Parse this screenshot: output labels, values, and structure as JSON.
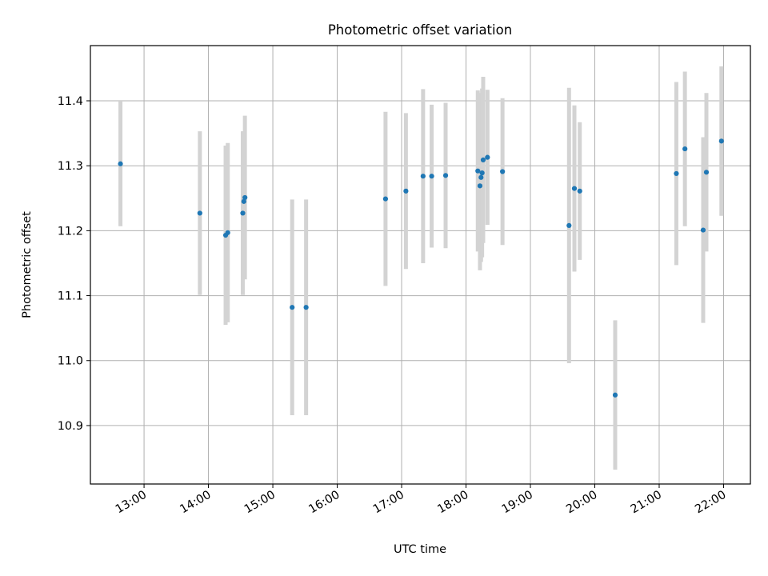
{
  "chart_data": {
    "type": "scatter",
    "title": "Photometric offset variation",
    "xlabel": "UTC time",
    "ylabel": "Photometric offset",
    "x_ticks": [
      "13:00",
      "14:00",
      "15:00",
      "16:00",
      "17:00",
      "18:00",
      "19:00",
      "20:00",
      "21:00",
      "22:00"
    ],
    "y_ticks": [
      "10.9",
      "11.0",
      "11.1",
      "11.2",
      "11.3",
      "11.4"
    ],
    "xlim": [
      "12:10",
      "22:25"
    ],
    "ylim": [
      10.81,
      11.485
    ],
    "grid": true,
    "point_color": "#1f77b4",
    "errorbar_color": "#d3d3d3",
    "points": [
      {
        "x": "12:38",
        "y": 11.303,
        "err": 0.096
      },
      {
        "x": "13:52",
        "y": 11.227,
        "err": 0.126
      },
      {
        "x": "14:16",
        "y": 11.193,
        "err": 0.138
      },
      {
        "x": "14:18",
        "y": 11.197,
        "err": 0.138
      },
      {
        "x": "14:32",
        "y": 11.227,
        "err": 0.126
      },
      {
        "x": "14:33",
        "y": 11.245,
        "err": 0.108
      },
      {
        "x": "14:34",
        "y": 11.251,
        "err": 0.126
      },
      {
        "x": "15:18",
        "y": 11.082,
        "err": 0.166
      },
      {
        "x": "15:31",
        "y": 11.082,
        "err": 0.166
      },
      {
        "x": "16:45",
        "y": 11.249,
        "err": 0.134
      },
      {
        "x": "17:04",
        "y": 11.261,
        "err": 0.12
      },
      {
        "x": "17:20",
        "y": 11.284,
        "err": 0.134
      },
      {
        "x": "17:28",
        "y": 11.284,
        "err": 0.11
      },
      {
        "x": "17:41",
        "y": 11.285,
        "err": 0.112
      },
      {
        "x": "18:11",
        "y": 11.292,
        "err": 0.124
      },
      {
        "x": "18:13",
        "y": 11.269,
        "err": 0.13
      },
      {
        "x": "18:14",
        "y": 11.282,
        "err": 0.13
      },
      {
        "x": "18:15",
        "y": 11.289,
        "err": 0.13
      },
      {
        "x": "18:16",
        "y": 11.309,
        "err": 0.128
      },
      {
        "x": "18:20",
        "y": 11.313,
        "err": 0.104
      },
      {
        "x": "18:34",
        "y": 11.291,
        "err": 0.113
      },
      {
        "x": "19:36",
        "y": 11.208,
        "err": 0.212
      },
      {
        "x": "19:41",
        "y": 11.265,
        "err": 0.128
      },
      {
        "x": "19:46",
        "y": 11.261,
        "err": 0.106
      },
      {
        "x": "20:19",
        "y": 10.947,
        "err": 0.115
      },
      {
        "x": "21:16",
        "y": 11.288,
        "err": 0.141
      },
      {
        "x": "21:24",
        "y": 11.326,
        "err": 0.119
      },
      {
        "x": "21:41",
        "y": 11.201,
        "err": 0.143
      },
      {
        "x": "21:44",
        "y": 11.29,
        "err": 0.122
      },
      {
        "x": "21:58",
        "y": 11.338,
        "err": 0.115
      }
    ]
  }
}
